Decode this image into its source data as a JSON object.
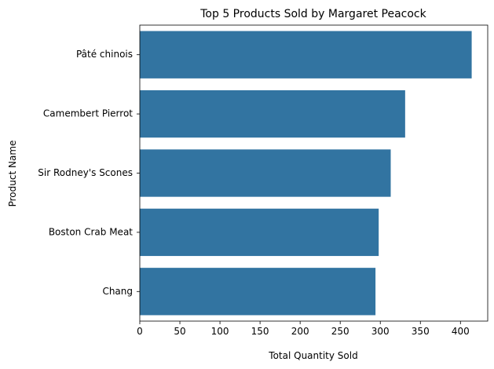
{
  "chart_data": {
    "type": "bar",
    "orientation": "horizontal",
    "title": "Top 5 Products Sold by Margaret Peacock",
    "xlabel": "Total Quantity Sold",
    "ylabel": "Product Name",
    "categories": [
      "Pâté chinois",
      "Camembert Pierrot",
      "Sir Rodney's Scones",
      "Boston Crab Meat",
      "Chang"
    ],
    "values": [
      414,
      331,
      313,
      298,
      294
    ],
    "xlim": [
      0,
      434
    ],
    "xticks": [
      0,
      50,
      100,
      150,
      200,
      250,
      300,
      350,
      400
    ],
    "grid": false,
    "legend": "none",
    "bar_color": "#3274a1"
  }
}
